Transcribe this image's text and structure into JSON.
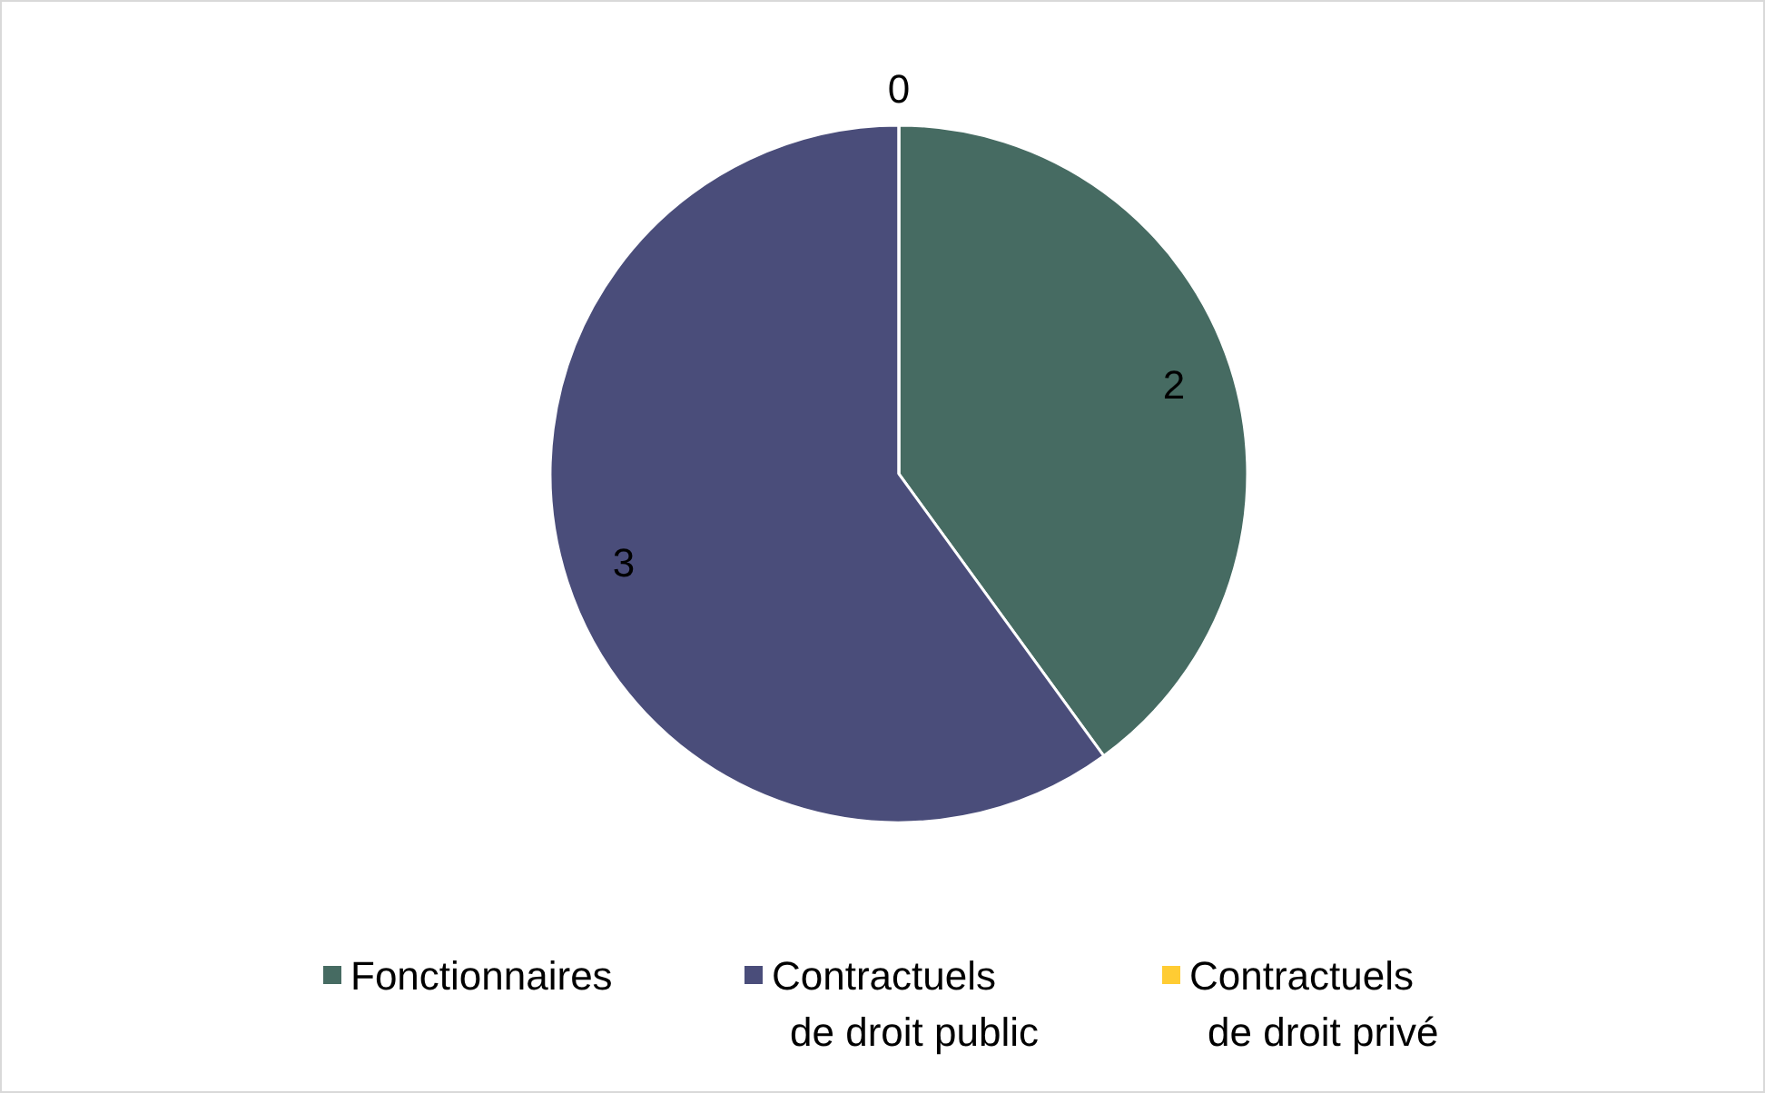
{
  "chart_data": {
    "type": "pie",
    "categories": [
      "Fonctionnaires",
      "Contractuels de droit public",
      "Contractuels de droit privé"
    ],
    "values": [
      2,
      3,
      0
    ],
    "colors": [
      "#466b62",
      "#4a4d7a",
      "#ffcc33"
    ],
    "value_labels": [
      "2",
      "3",
      "0"
    ],
    "legend": "bottom"
  }
}
